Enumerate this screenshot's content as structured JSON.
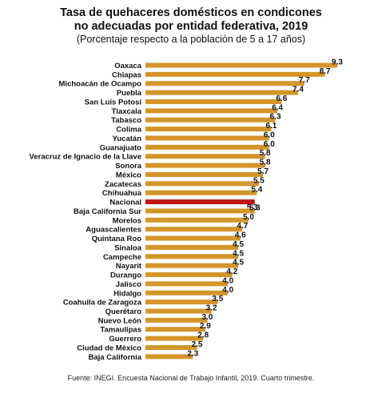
{
  "chart_data": {
    "type": "bar",
    "orientation": "horizontal",
    "title_line1": "Tasa de quehaceres domésticos en condicones",
    "title_line2": "no adecuadas por entidad federativa, 2019",
    "subtitle": "(Porcentaje respecto a la población de 5 a 17 años)",
    "source": "Fuente: INEGI. Encuesta Nacional de Trabajo Infantil, 2019. Cuarto trimestre.",
    "categories": [
      "Oaxaca",
      "Chiapas",
      "Michoacán de Ocampo",
      "Puebla",
      "San Luis Potosí",
      "Tlaxcala",
      "Tabasco",
      "Colima",
      "Yucatán",
      "Guanajuato",
      "Veracruz de Ignacio de la Llave",
      "Sonora",
      "México",
      "Zacatecas",
      "Chihuahua",
      "Nacional",
      "Baja California Sur",
      "Morelos",
      "Aguascalientes",
      "Quintana Roo",
      "Sinaloa",
      "Campeche",
      "Nayarit",
      "Durango",
      "Jalisco",
      "Hidalgo",
      "Coahuila de Zaragoza",
      "Querétaro",
      "Nuevo León",
      "Tamaulipas",
      "Guerrero",
      "Ciudad de México",
      "Baja California"
    ],
    "values": [
      9.3,
      8.7,
      7.7,
      7.4,
      6.6,
      6.4,
      6.3,
      6.1,
      6.0,
      6.0,
      5.8,
      5.8,
      5.7,
      5.5,
      5.4,
      5.3,
      5.3,
      5.0,
      4.7,
      4.6,
      4.5,
      4.5,
      4.5,
      4.2,
      4.0,
      4.0,
      3.5,
      3.2,
      3.0,
      2.9,
      2.8,
      2.5,
      2.3
    ],
    "value_labels": [
      "9.3",
      "8.7",
      "7.7",
      "7.4",
      "6.6",
      "6.4",
      "6.3",
      "6.1",
      "6.0",
      "6.0",
      "5.8",
      "5.8",
      "5.7",
      "5.5",
      "5.4",
      "5.3",
      "5.3",
      "5.0",
      "4.7",
      "4.6",
      "4.5",
      "4.5",
      "4.5",
      "4.2",
      "4.0",
      "4.0",
      "3.5",
      "3.2",
      "3.0",
      "2.9",
      "2.8",
      "2.5",
      "2.3"
    ],
    "highlight": "Nacional",
    "colors": {
      "bar": "#D4952B",
      "highlight": "#C0141B"
    },
    "xlim": [
      0,
      9.3
    ],
    "grid": false,
    "legend": "none"
  }
}
